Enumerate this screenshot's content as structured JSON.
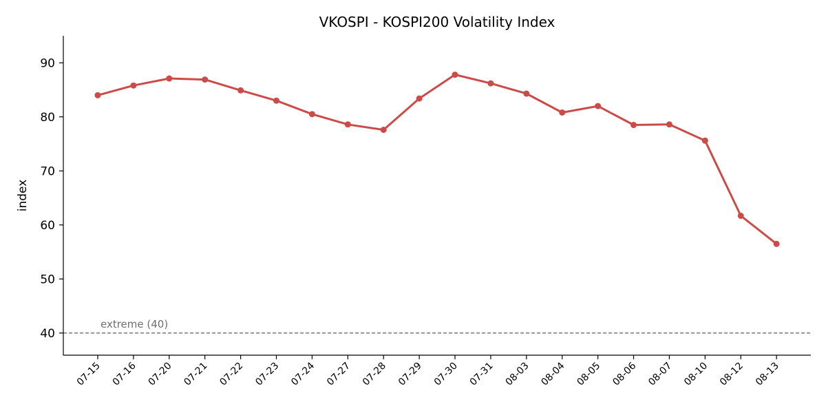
{
  "chart_data": {
    "type": "line",
    "title": "VKOSPI - KOSPI200 Volatility Index",
    "xlabel": "",
    "ylabel": "index",
    "ylim": [
      35.9,
      95
    ],
    "yticks": [
      40,
      50,
      60,
      70,
      80,
      90
    ],
    "grid": false,
    "categories": [
      "07-15",
      "07-16",
      "07-20",
      "07-21",
      "07-22",
      "07-23",
      "07-24",
      "07-27",
      "07-28",
      "07-29",
      "07-30",
      "07-31",
      "08-03",
      "08-04",
      "08-05",
      "08-06",
      "08-07",
      "08-10",
      "08-12",
      "08-13"
    ],
    "series": [
      {
        "color": "#cc4a48",
        "values": [
          84.0,
          85.8,
          87.1,
          86.9,
          84.9,
          83.0,
          80.5,
          78.6,
          77.6,
          83.4,
          87.8,
          86.2,
          84.3,
          80.8,
          82.0,
          78.5,
          78.6,
          75.6,
          61.7,
          56.5
        ]
      }
    ],
    "reference_line": {
      "value": 40,
      "label": "extreme (40)",
      "color": "#6b6b7b",
      "style": "dashed"
    }
  }
}
